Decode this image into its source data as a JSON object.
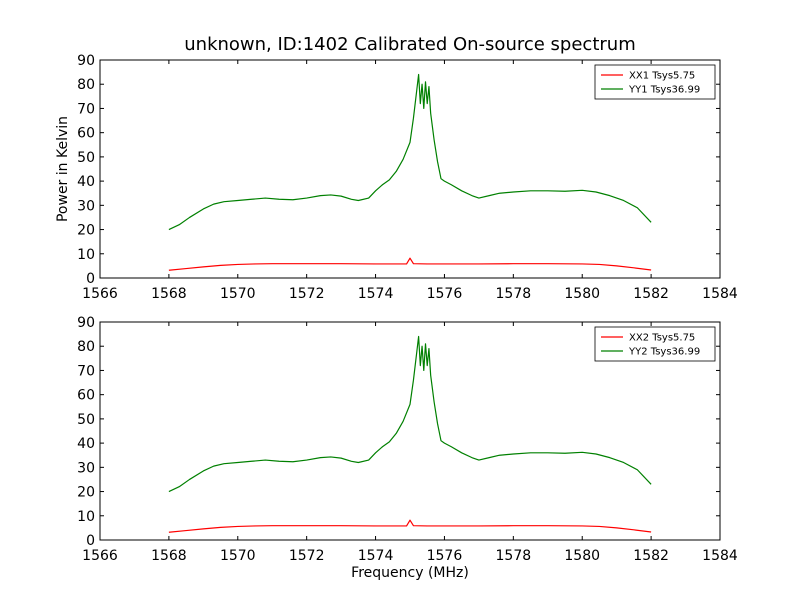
{
  "title": "unknown, ID:1402 Calibrated On-source spectrum",
  "xlabel": "Frequency (MHz)",
  "ylabel_top": "Power in Kelvin",
  "colors": {
    "xx": "#ff0000",
    "yy": "#008000"
  },
  "chart_data": [
    {
      "type": "line",
      "title": "unknown, ID:1402 Calibrated On-source spectrum",
      "xlabel": "",
      "ylabel": "Power in Kelvin",
      "xlim": [
        1566,
        1584
      ],
      "ylim": [
        0,
        90
      ],
      "xticks": [
        1566,
        1568,
        1570,
        1572,
        1574,
        1576,
        1578,
        1580,
        1582,
        1584
      ],
      "yticks": [
        0,
        10,
        20,
        30,
        40,
        50,
        60,
        70,
        80,
        90
      ],
      "grid": false,
      "legend": "top-right",
      "series": [
        {
          "name": "XX1 Tsys5.75",
          "color": "#ff0000",
          "x": [
            1568,
            1568.5,
            1569,
            1569.5,
            1570,
            1570.5,
            1571,
            1572,
            1573,
            1574,
            1574.9,
            1575.0,
            1575.1,
            1575.5,
            1576,
            1577,
            1578,
            1579,
            1580,
            1580.5,
            1581,
            1581.5,
            1582
          ],
          "y": [
            3.2,
            3.9,
            4.6,
            5.2,
            5.6,
            5.8,
            5.9,
            5.9,
            5.9,
            5.8,
            5.8,
            8.2,
            5.9,
            5.8,
            5.8,
            5.8,
            5.9,
            5.9,
            5.8,
            5.6,
            5.0,
            4.2,
            3.3
          ]
        },
        {
          "name": "YY1 Tsys36.99",
          "color": "#008000",
          "x": [
            1568,
            1568.3,
            1568.6,
            1569,
            1569.3,
            1569.6,
            1570,
            1570.4,
            1570.8,
            1571.2,
            1571.6,
            1572,
            1572.4,
            1572.7,
            1573,
            1573.3,
            1573.5,
            1573.8,
            1574.0,
            1574.2,
            1574.4,
            1574.6,
            1574.8,
            1575.0,
            1575.1,
            1575.2,
            1575.25,
            1575.3,
            1575.35,
            1575.4,
            1575.45,
            1575.5,
            1575.55,
            1575.6,
            1575.7,
            1575.8,
            1575.9,
            1576.0,
            1576.2,
            1576.5,
            1576.8,
            1577.0,
            1577.3,
            1577.6,
            1578,
            1578.5,
            1579,
            1579.5,
            1580,
            1580.4,
            1580.8,
            1581.2,
            1581.6,
            1582
          ],
          "y": [
            20,
            22,
            25,
            28.5,
            30.5,
            31.5,
            32,
            32.5,
            33,
            32.5,
            32.3,
            33,
            34,
            34.3,
            33.8,
            32.5,
            32,
            33,
            36,
            38.5,
            40.5,
            44,
            49,
            56,
            66,
            78,
            84,
            72,
            80,
            70,
            81,
            72,
            79,
            68,
            57,
            48,
            41,
            40,
            38.5,
            36,
            34,
            33,
            34,
            35,
            35.5,
            36,
            36,
            35.8,
            36.2,
            35.5,
            34,
            32,
            29,
            23
          ]
        }
      ]
    },
    {
      "type": "line",
      "title": "",
      "xlabel": "Frequency (MHz)",
      "ylabel": "",
      "xlim": [
        1566,
        1584
      ],
      "ylim": [
        0,
        90
      ],
      "xticks": [
        1566,
        1568,
        1570,
        1572,
        1574,
        1576,
        1578,
        1580,
        1582,
        1584
      ],
      "yticks": [
        0,
        10,
        20,
        30,
        40,
        50,
        60,
        70,
        80,
        90
      ],
      "grid": false,
      "legend": "top-right",
      "series": [
        {
          "name": "XX2 Tsys5.75",
          "color": "#ff0000",
          "x": [
            1568,
            1568.5,
            1569,
            1569.5,
            1570,
            1570.5,
            1571,
            1572,
            1573,
            1574,
            1574.9,
            1575.0,
            1575.1,
            1575.5,
            1576,
            1577,
            1578,
            1579,
            1580,
            1580.5,
            1581,
            1581.5,
            1582
          ],
          "y": [
            3.2,
            3.9,
            4.6,
            5.2,
            5.6,
            5.8,
            5.9,
            5.9,
            5.9,
            5.8,
            5.8,
            8.2,
            5.9,
            5.8,
            5.8,
            5.8,
            5.9,
            5.9,
            5.8,
            5.6,
            5.0,
            4.2,
            3.3
          ]
        },
        {
          "name": "YY2 Tsys36.99",
          "color": "#008000",
          "x": [
            1568,
            1568.3,
            1568.6,
            1569,
            1569.3,
            1569.6,
            1570,
            1570.4,
            1570.8,
            1571.2,
            1571.6,
            1572,
            1572.4,
            1572.7,
            1573,
            1573.3,
            1573.5,
            1573.8,
            1574.0,
            1574.2,
            1574.4,
            1574.6,
            1574.8,
            1575.0,
            1575.1,
            1575.2,
            1575.25,
            1575.3,
            1575.35,
            1575.4,
            1575.45,
            1575.5,
            1575.55,
            1575.6,
            1575.7,
            1575.8,
            1575.9,
            1576.0,
            1576.2,
            1576.5,
            1576.8,
            1577.0,
            1577.3,
            1577.6,
            1578,
            1578.5,
            1579,
            1579.5,
            1580,
            1580.4,
            1580.8,
            1581.2,
            1581.6,
            1582
          ],
          "y": [
            20,
            22,
            25,
            28.5,
            30.5,
            31.5,
            32,
            32.5,
            33,
            32.5,
            32.3,
            33,
            34,
            34.3,
            33.8,
            32.5,
            32,
            33,
            36,
            38.5,
            40.5,
            44,
            49,
            56,
            66,
            78,
            84,
            72,
            80,
            70,
            81,
            72,
            79,
            68,
            57,
            48,
            41,
            40,
            38.5,
            36,
            34,
            33,
            34,
            35,
            35.5,
            36,
            36,
            35.8,
            36.2,
            35.5,
            34,
            32,
            29,
            23
          ]
        }
      ]
    }
  ]
}
